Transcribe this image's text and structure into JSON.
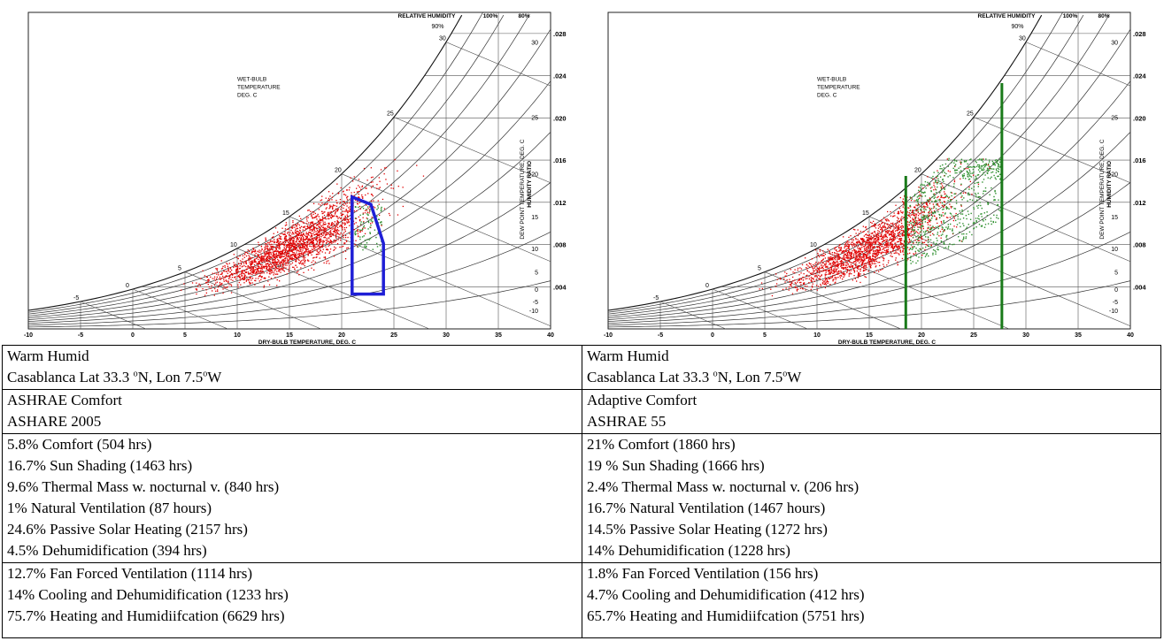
{
  "chart_data": [
    {
      "type": "scatter",
      "xlabel": "DRY-BULB TEMPERATURE, DEG. C",
      "ylabel": "HUMIDITY RATIO",
      "y2label": "DEW POINT TEMPERATURE, DEG. C",
      "top_label": "RELATIVE HUMIDITY",
      "rh_top_labels": [
        "100%",
        "80%"
      ],
      "rh_inner_label": "90%",
      "wetbulb_label": [
        "WET-BULB",
        "TEMPERATURE",
        "DEG. C"
      ],
      "x_ticks": [
        "-10",
        "-5",
        "0",
        "5",
        "10",
        "15",
        "20",
        "25",
        "30",
        "35",
        "40"
      ],
      "xlim": [
        -10,
        40
      ],
      "y_ticks": [
        ".004",
        ".008",
        ".012",
        ".016",
        ".020",
        ".024",
        ".028"
      ],
      "ylim": [
        0,
        0.03
      ],
      "dew_point_ticks": [
        "-10",
        "-5",
        "0",
        "5",
        "10",
        "15",
        "20",
        "25",
        "30"
      ],
      "wetbulb_ticks": [
        "-5",
        "0",
        "5",
        "10",
        "15",
        "20",
        "25",
        "30"
      ],
      "comfort_zone": {
        "shape": "polygon",
        "color": "#1f1fd6",
        "points": [
          [
            21,
            0.0125
          ],
          [
            22.8,
            0.0118
          ],
          [
            24,
            0.0081
          ],
          [
            24,
            0.0033
          ],
          [
            21,
            0.0033
          ]
        ]
      },
      "series": [
        {
          "color": "#e00000",
          "count": 2200
        },
        {
          "color": "#2f8f2f",
          "count": 90
        }
      ]
    },
    {
      "type": "scatter",
      "xlabel": "DRY-BULB TEMPERATURE, DEG. C",
      "ylabel": "HUMIDITY RATIO",
      "y2label": "DEW POINT TEMPERATURE, DEG. C",
      "top_label": "RELATIVE HUMIDITY",
      "rh_top_labels": [
        "100%",
        "80%"
      ],
      "rh_inner_label": "90%",
      "wetbulb_label": [
        "WET-BULB",
        "TEMPERATURE",
        "DEG. C"
      ],
      "x_ticks": [
        "-10",
        "-5",
        "0",
        "5",
        "10",
        "15",
        "20",
        "25",
        "30",
        "35",
        "40"
      ],
      "xlim": [
        -10,
        40
      ],
      "y_ticks": [
        ".004",
        ".008",
        ".012",
        ".016",
        ".020",
        ".024",
        ".028"
      ],
      "ylim": [
        0,
        0.03
      ],
      "dew_point_ticks": [
        "-10",
        "-5",
        "0",
        "5",
        "10",
        "15",
        "20",
        "25",
        "30"
      ],
      "wetbulb_ticks": [
        "-5",
        "0",
        "5",
        "10",
        "15",
        "20",
        "25",
        "30"
      ],
      "adaptive_lines": {
        "color": "#1a7a1a",
        "lines": [
          {
            "x": 18.5,
            "top": 0.0145
          },
          {
            "x": 27.7,
            "top": 0.0233
          }
        ]
      },
      "series": [
        {
          "color": "#e00000",
          "count": 1900
        },
        {
          "color": "#2f8f2f",
          "count": 650
        }
      ]
    }
  ],
  "left": {
    "climate": "Warm Humid",
    "location": {
      "pre": "Casablanca Lat 33.3 ",
      "sup1": "o",
      "mid": "N, Lon 7.5",
      "sup2": "o",
      "post": "W"
    },
    "model": "ASHRAE Comfort",
    "standard": "ASHARE 2005",
    "strategies": [
      "5.8% Comfort (504 hrs)",
      "16.7% Sun Shading (1463 hrs)",
      "9.6% Thermal Mass w. nocturnal v. (840 hrs)",
      "1% Natural Ventilation (87 hours)",
      "24.6% Passive Solar Heating (2157 hrs)",
      "4.5% Dehumidification (394 hrs)"
    ],
    "active": [
      "12.7% Fan Forced Ventilation (1114 hrs)",
      "14% Cooling and Dehumidification (1233 hrs)",
      "75.7% Heating and Humidiifcation (6629 hrs)"
    ]
  },
  "right": {
    "climate": "Warm Humid",
    "location": {
      "pre": "Casablanca Lat 33.3 ",
      "sup1": "o",
      "mid": "N, Lon 7.5",
      "sup2": "o",
      "post": "W"
    },
    "model": "Adaptive Comfort",
    "standard": "ASHRAE 55",
    "strategies": [
      "21% Comfort (1860 hrs)",
      "19 % Sun Shading (1666 hrs)",
      "2.4% Thermal Mass w. nocturnal v. (206 hrs)",
      "16.7% Natural Ventilation (1467 hours)",
      "14.5% Passive Solar Heating (1272 hrs)",
      "14% Dehumidification (1228 hrs)"
    ],
    "active": [
      "1.8% Fan Forced Ventilation (156 hrs)",
      "4.7% Cooling and Dehumidification (412 hrs)",
      "65.7% Heating and Humidiifcation (5751 hrs)"
    ]
  }
}
